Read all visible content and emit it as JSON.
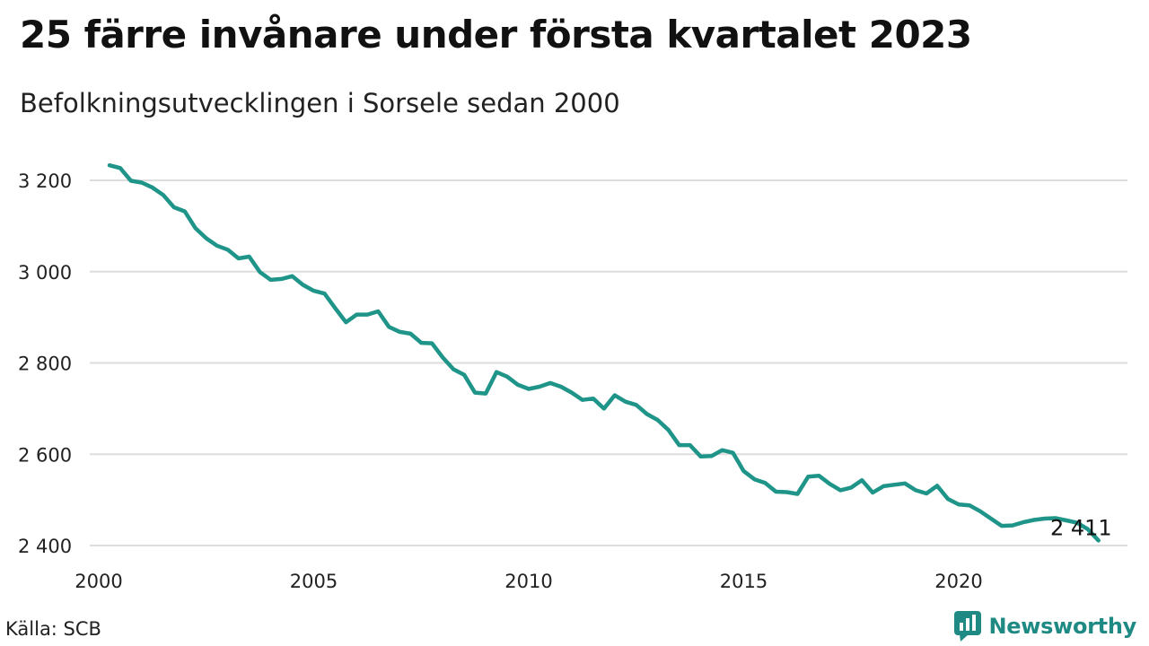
{
  "header": {
    "title": "25 färre invånare under första kvartalet 2023",
    "subtitle": "Befolkningsutvecklingen i Sorsele sedan 2000"
  },
  "footer": {
    "source": "Källa: SCB",
    "brand": "Newsworthy"
  },
  "colors": {
    "line": "#1f9488",
    "grid": "#dddddd",
    "brand": "#1f8a83"
  },
  "icons": {
    "brand_logo": "newsworthy-logo-icon"
  },
  "chart_data": {
    "type": "line",
    "title": "25 färre invånare under första kvartalet 2023",
    "subtitle": "Befolkningsutvecklingen i Sorsele sedan 2000",
    "xlabel": "",
    "ylabel": "",
    "x_ticks": [
      {
        "value": 2000,
        "label": "2000"
      },
      {
        "value": 2005,
        "label": "2005"
      },
      {
        "value": 2010,
        "label": "2010"
      },
      {
        "value": 2015,
        "label": "2015"
      },
      {
        "value": 2020,
        "label": "2020"
      }
    ],
    "y_ticks": [
      {
        "value": 2400,
        "label": "2 400"
      },
      {
        "value": 2600,
        "label": "2 600"
      },
      {
        "value": 2800,
        "label": "2 800"
      },
      {
        "value": 3000,
        "label": "3 000"
      },
      {
        "value": 3200,
        "label": "3 200"
      }
    ],
    "xlim": [
      2000,
      2023.75
    ],
    "ylim": [
      2400,
      3240
    ],
    "grid": true,
    "end_label": "2 411",
    "series": [
      {
        "values": [
          {
            "x": 2000.25,
            "y": 3233
          },
          {
            "x": 2000.5,
            "y": 3227
          },
          {
            "x": 2000.75,
            "y": 3199
          },
          {
            "x": 2001.0,
            "y": 3195
          },
          {
            "x": 2001.25,
            "y": 3184
          },
          {
            "x": 2001.5,
            "y": 3168
          },
          {
            "x": 2001.75,
            "y": 3141
          },
          {
            "x": 2002.0,
            "y": 3132
          },
          {
            "x": 2002.25,
            "y": 3095
          },
          {
            "x": 2002.5,
            "y": 3073
          },
          {
            "x": 2002.75,
            "y": 3057
          },
          {
            "x": 2003.0,
            "y": 3048
          },
          {
            "x": 2003.25,
            "y": 3029
          },
          {
            "x": 2003.5,
            "y": 3033
          },
          {
            "x": 2003.75,
            "y": 2999
          },
          {
            "x": 2004.0,
            "y": 2982
          },
          {
            "x": 2004.25,
            "y": 2984
          },
          {
            "x": 2004.5,
            "y": 2990
          },
          {
            "x": 2004.75,
            "y": 2971
          },
          {
            "x": 2005.0,
            "y": 2958
          },
          {
            "x": 2005.25,
            "y": 2952
          },
          {
            "x": 2005.5,
            "y": 2920
          },
          {
            "x": 2005.75,
            "y": 2889
          },
          {
            "x": 2006.0,
            "y": 2906
          },
          {
            "x": 2006.25,
            "y": 2906
          },
          {
            "x": 2006.5,
            "y": 2913
          },
          {
            "x": 2006.75,
            "y": 2879
          },
          {
            "x": 2007.0,
            "y": 2868
          },
          {
            "x": 2007.25,
            "y": 2864
          },
          {
            "x": 2007.5,
            "y": 2844
          },
          {
            "x": 2007.75,
            "y": 2843
          },
          {
            "x": 2008.0,
            "y": 2812
          },
          {
            "x": 2008.25,
            "y": 2786
          },
          {
            "x": 2008.5,
            "y": 2774
          },
          {
            "x": 2008.75,
            "y": 2735
          },
          {
            "x": 2009.0,
            "y": 2733
          },
          {
            "x": 2009.25,
            "y": 2780
          },
          {
            "x": 2009.5,
            "y": 2770
          },
          {
            "x": 2009.75,
            "y": 2752
          },
          {
            "x": 2010.0,
            "y": 2743
          },
          {
            "x": 2010.25,
            "y": 2748
          },
          {
            "x": 2010.5,
            "y": 2756
          },
          {
            "x": 2010.75,
            "y": 2748
          },
          {
            "x": 2011.0,
            "y": 2735
          },
          {
            "x": 2011.25,
            "y": 2719
          },
          {
            "x": 2011.5,
            "y": 2722
          },
          {
            "x": 2011.75,
            "y": 2700
          },
          {
            "x": 2012.0,
            "y": 2729
          },
          {
            "x": 2012.25,
            "y": 2715
          },
          {
            "x": 2012.5,
            "y": 2708
          },
          {
            "x": 2012.75,
            "y": 2688
          },
          {
            "x": 2013.0,
            "y": 2675
          },
          {
            "x": 2013.25,
            "y": 2653
          },
          {
            "x": 2013.5,
            "y": 2620
          },
          {
            "x": 2013.75,
            "y": 2620
          },
          {
            "x": 2014.0,
            "y": 2595
          },
          {
            "x": 2014.25,
            "y": 2596
          },
          {
            "x": 2014.5,
            "y": 2609
          },
          {
            "x": 2014.75,
            "y": 2603
          },
          {
            "x": 2015.0,
            "y": 2563
          },
          {
            "x": 2015.25,
            "y": 2545
          },
          {
            "x": 2015.5,
            "y": 2537
          },
          {
            "x": 2015.75,
            "y": 2518
          },
          {
            "x": 2016.0,
            "y": 2517
          },
          {
            "x": 2016.25,
            "y": 2513
          },
          {
            "x": 2016.5,
            "y": 2551
          },
          {
            "x": 2016.75,
            "y": 2553
          },
          {
            "x": 2017.0,
            "y": 2535
          },
          {
            "x": 2017.25,
            "y": 2521
          },
          {
            "x": 2017.5,
            "y": 2527
          },
          {
            "x": 2017.75,
            "y": 2543
          },
          {
            "x": 2018.0,
            "y": 2516
          },
          {
            "x": 2018.25,
            "y": 2530
          },
          {
            "x": 2018.5,
            "y": 2533
          },
          {
            "x": 2018.75,
            "y": 2536
          },
          {
            "x": 2019.0,
            "y": 2521
          },
          {
            "x": 2019.25,
            "y": 2514
          },
          {
            "x": 2019.5,
            "y": 2531
          },
          {
            "x": 2019.75,
            "y": 2502
          },
          {
            "x": 2020.0,
            "y": 2490
          },
          {
            "x": 2020.25,
            "y": 2488
          },
          {
            "x": 2020.5,
            "y": 2475
          },
          {
            "x": 2020.75,
            "y": 2459
          },
          {
            "x": 2021.0,
            "y": 2443
          },
          {
            "x": 2021.25,
            "y": 2444
          },
          {
            "x": 2021.5,
            "y": 2451
          },
          {
            "x": 2021.75,
            "y": 2456
          },
          {
            "x": 2022.0,
            "y": 2459
          },
          {
            "x": 2022.25,
            "y": 2460
          },
          {
            "x": 2022.5,
            "y": 2455
          },
          {
            "x": 2022.75,
            "y": 2450
          },
          {
            "x": 2023.0,
            "y": 2436
          },
          {
            "x": 2023.25,
            "y": 2411
          }
        ]
      }
    ]
  }
}
